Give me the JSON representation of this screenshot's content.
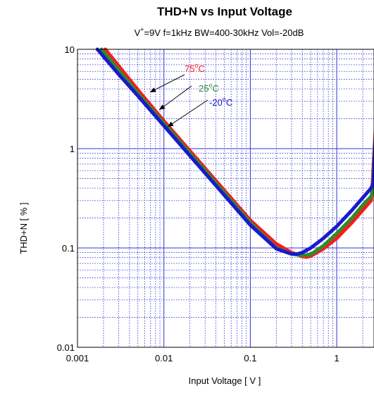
{
  "chart_data": {
    "type": "line",
    "title": "THD+N vs Input Voltage",
    "subtitle": {
      "v": "V",
      "v_sup": "+",
      "rest": "=9V f=1kHz BW=400-30kHz Vol=-20dB"
    },
    "xlabel": "Input Voltage [ V ]",
    "ylabel": "THD+N  [ % ]",
    "x_scale": "log",
    "y_scale": "log",
    "xlim": [
      0.001,
      3
    ],
    "ylim": [
      0.01,
      10
    ],
    "x_ticks": [
      {
        "value": 0.001,
        "label": "0.001"
      },
      {
        "value": 0.01,
        "label": "0.01"
      },
      {
        "value": 0.1,
        "label": "0.1"
      },
      {
        "value": 1,
        "label": "1"
      }
    ],
    "y_ticks": [
      {
        "value": 0.01,
        "label": "0.01"
      },
      {
        "value": 0.1,
        "label": "0.1"
      },
      {
        "value": 1,
        "label": "1"
      },
      {
        "value": 10,
        "label": "10"
      }
    ],
    "grid": true,
    "series": [
      {
        "name": "75°C",
        "color": "#ff1a1a",
        "x": [
          0.0021,
          0.003,
          0.005,
          0.01,
          0.02,
          0.05,
          0.1,
          0.2,
          0.3,
          0.4,
          0.45,
          0.5,
          0.7,
          1,
          1.5,
          2,
          2.5,
          2.55,
          3
        ],
        "y": [
          10,
          6.8,
          3.9,
          1.9,
          0.95,
          0.38,
          0.19,
          0.11,
          0.09,
          0.082,
          0.081,
          0.083,
          0.098,
          0.125,
          0.18,
          0.24,
          0.3,
          0.35,
          4.5
        ]
      },
      {
        "name": "25°C",
        "color": "#2e8b2e",
        "x": [
          0.0019,
          0.003,
          0.005,
          0.01,
          0.02,
          0.05,
          0.1,
          0.2,
          0.3,
          0.4,
          0.5,
          0.7,
          1,
          1.5,
          2,
          2.5,
          2.6,
          3
        ],
        "y": [
          10,
          6.2,
          3.6,
          1.8,
          0.9,
          0.36,
          0.18,
          0.1,
          0.087,
          0.084,
          0.086,
          0.105,
          0.14,
          0.2,
          0.27,
          0.33,
          0.38,
          4.5
        ]
      },
      {
        "name": "-20°C",
        "color": "#1a1acc",
        "x": [
          0.0017,
          0.003,
          0.005,
          0.01,
          0.02,
          0.05,
          0.1,
          0.2,
          0.3,
          0.35,
          0.4,
          0.5,
          0.7,
          1,
          1.5,
          2,
          2.5,
          2.65,
          3
        ],
        "y": [
          10,
          5.6,
          3.4,
          1.7,
          0.85,
          0.34,
          0.17,
          0.098,
          0.087,
          0.087,
          0.09,
          0.1,
          0.125,
          0.165,
          0.24,
          0.32,
          0.4,
          0.45,
          5
        ]
      }
    ],
    "annotations": [
      {
        "text": "75",
        "unit": "C",
        "deg": "o",
        "color": "#ff1a1a",
        "series": "75°C"
      },
      {
        "text": "25",
        "unit": "C",
        "deg": "o",
        "color": "#2e8b2e",
        "series": "25°C"
      },
      {
        "text": "-20",
        "unit": "C",
        "deg": "o",
        "color": "#1a1acc",
        "series": "-20°C"
      }
    ]
  }
}
